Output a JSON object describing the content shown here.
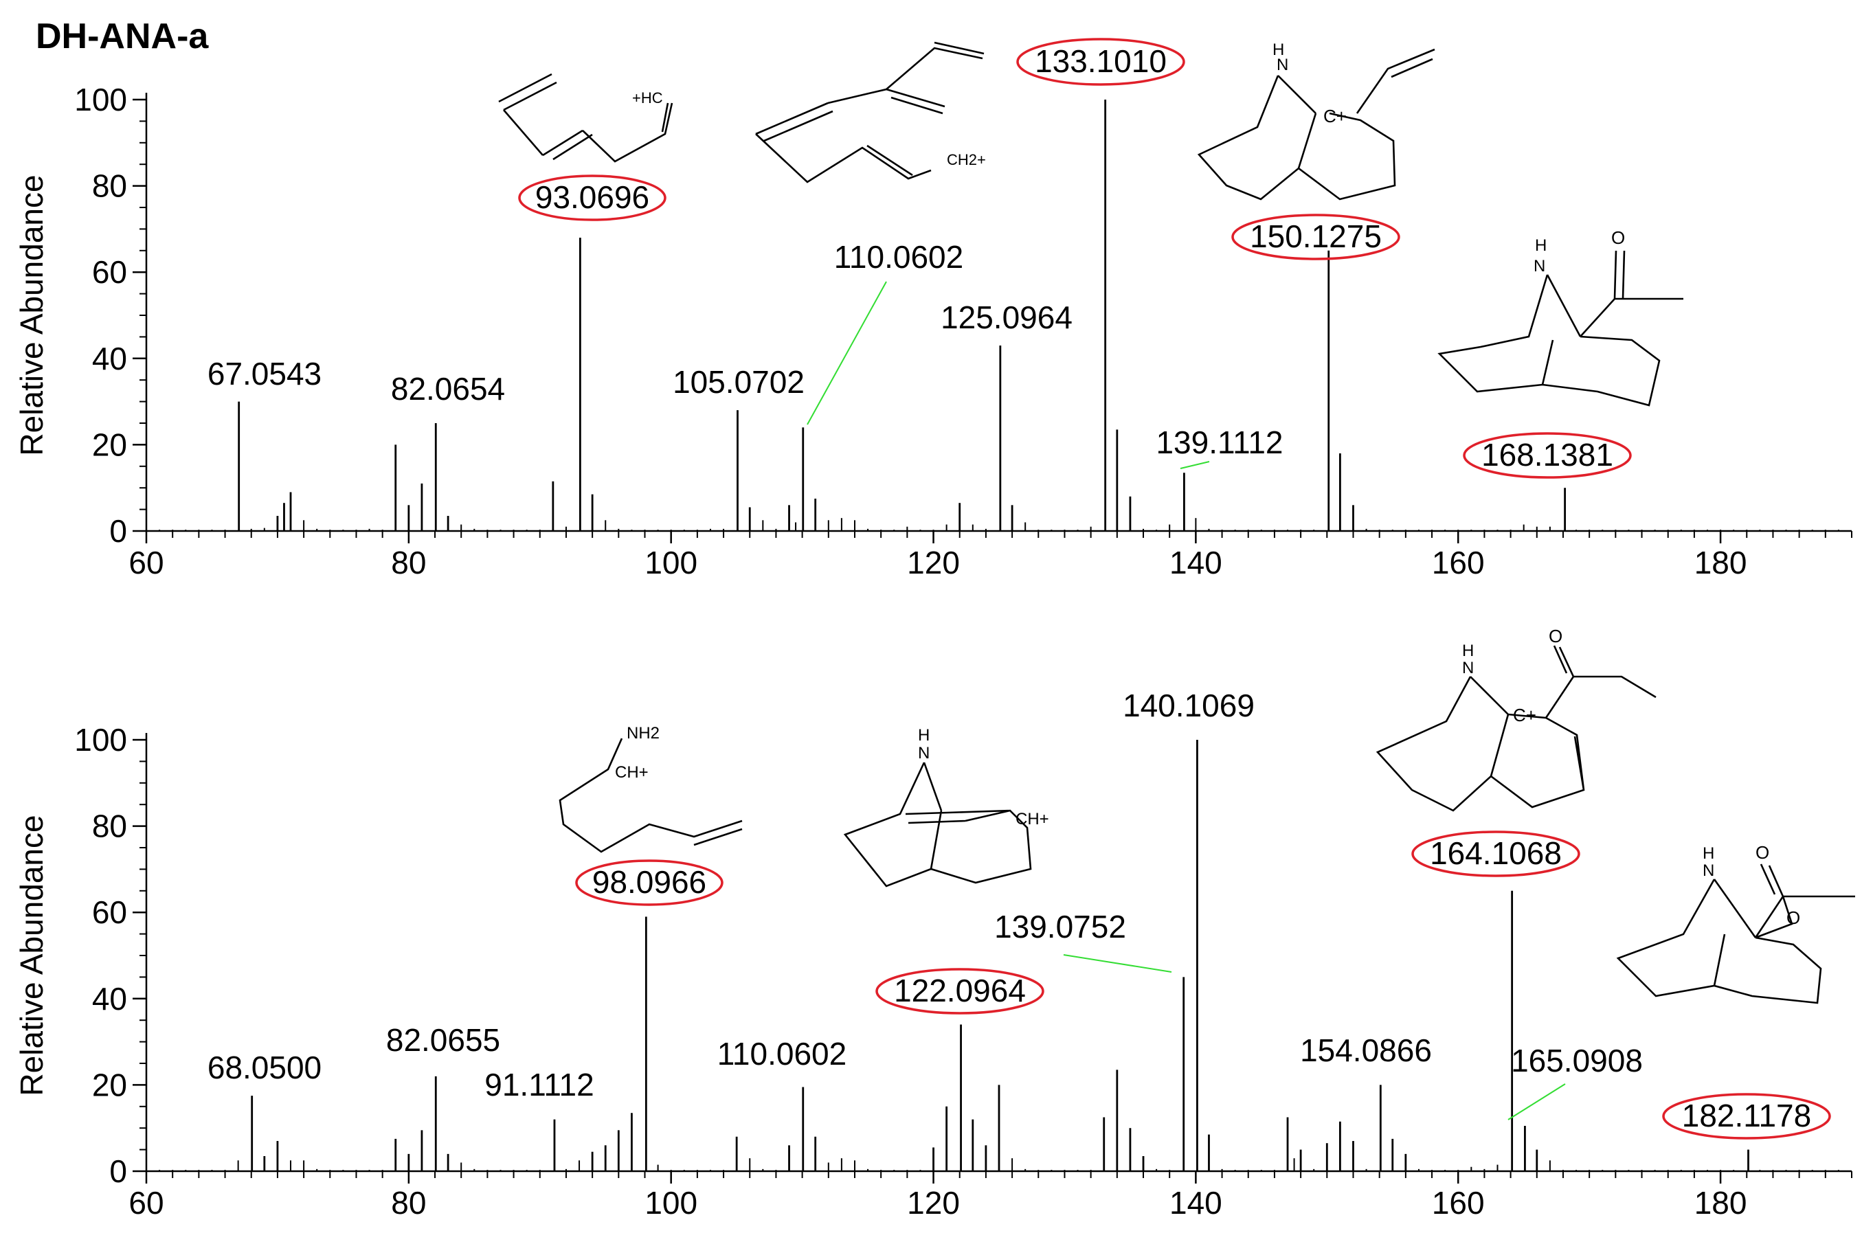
{
  "title": "DH-ANA-a",
  "colors": {
    "bars": "#000000",
    "highlight": "#e0202a",
    "leader": "#33dd33"
  },
  "chart_data": [
    {
      "type": "bar",
      "ylabel": "Relative Abundance",
      "xlabel": "",
      "xlim": [
        60,
        190
      ],
      "ylim": [
        0,
        100
      ],
      "xticks": [
        60,
        80,
        100,
        120,
        140,
        160,
        180
      ],
      "yticks": [
        0,
        20,
        40,
        60,
        80,
        100
      ],
      "peaks": [
        [
          61,
          0.3
        ],
        [
          62,
          0.3
        ],
        [
          63,
          0.3
        ],
        [
          64,
          0.3
        ],
        [
          65,
          0.3
        ],
        [
          66,
          0.3
        ],
        [
          67.0543,
          30
        ],
        [
          68,
          0.5
        ],
        [
          69,
          0.7
        ],
        [
          70,
          3.5
        ],
        [
          70.5,
          6.5
        ],
        [
          71,
          9
        ],
        [
          72,
          2.5
        ],
        [
          73,
          0.5
        ],
        [
          74,
          0.3
        ],
        [
          75,
          0.3
        ],
        [
          76,
          0.3
        ],
        [
          77,
          0.5
        ],
        [
          78,
          0.3
        ],
        [
          79,
          20
        ],
        [
          80,
          6
        ],
        [
          81,
          11
        ],
        [
          82.0654,
          25
        ],
        [
          83,
          3.5
        ],
        [
          84,
          1.5
        ],
        [
          85,
          0.5
        ],
        [
          86,
          0.3
        ],
        [
          87,
          0.3
        ],
        [
          88,
          0.3
        ],
        [
          89,
          0.3
        ],
        [
          90,
          0.3
        ],
        [
          91,
          11.5
        ],
        [
          92,
          1
        ],
        [
          93.0696,
          68
        ],
        [
          94,
          8.5
        ],
        [
          95,
          2.5
        ],
        [
          96,
          0.5
        ],
        [
          97,
          0.3
        ],
        [
          98,
          0.3
        ],
        [
          99,
          0.3
        ],
        [
          100,
          0.3
        ],
        [
          101,
          0.3
        ],
        [
          102,
          0.3
        ],
        [
          103,
          0.5
        ],
        [
          104,
          0.5
        ],
        [
          105.0702,
          28
        ],
        [
          106,
          5.5
        ],
        [
          107,
          2.5
        ],
        [
          108,
          0.5
        ],
        [
          109,
          6
        ],
        [
          109.5,
          2
        ],
        [
          110.0602,
          24
        ],
        [
          111,
          7.5
        ],
        [
          112,
          2.5
        ],
        [
          113,
          3
        ],
        [
          114,
          2.5
        ],
        [
          115,
          0.5
        ],
        [
          116,
          0.3
        ],
        [
          117,
          0.3
        ],
        [
          118,
          1
        ],
        [
          119,
          0.3
        ],
        [
          120,
          0.3
        ],
        [
          121,
          1.5
        ],
        [
          122,
          6.5
        ],
        [
          123,
          1.5
        ],
        [
          124,
          0.5
        ],
        [
          125.0964,
          43
        ],
        [
          126,
          6
        ],
        [
          127,
          2
        ],
        [
          128,
          0.3
        ],
        [
          129,
          0.3
        ],
        [
          130,
          0.3
        ],
        [
          131,
          0.3
        ],
        [
          132,
          1
        ],
        [
          133.101,
          100
        ],
        [
          134,
          23.5
        ],
        [
          135,
          8
        ],
        [
          136,
          0.5
        ],
        [
          137,
          0.3
        ],
        [
          138,
          1.5
        ],
        [
          139.1112,
          13.5
        ],
        [
          140,
          3
        ],
        [
          141,
          0.5
        ],
        [
          142,
          0.3
        ],
        [
          143,
          0.3
        ],
        [
          144,
          0.3
        ],
        [
          145,
          0.3
        ],
        [
          146,
          0.3
        ],
        [
          147,
          0.3
        ],
        [
          148,
          0.3
        ],
        [
          149,
          0.3
        ],
        [
          150.1275,
          65
        ],
        [
          151,
          18
        ],
        [
          152,
          6
        ],
        [
          153,
          0.5
        ],
        [
          154,
          0.3
        ],
        [
          155,
          0.3
        ],
        [
          156,
          0.3
        ],
        [
          157,
          0.3
        ],
        [
          158,
          0.3
        ],
        [
          159,
          0.3
        ],
        [
          160,
          0.3
        ],
        [
          161,
          0.3
        ],
        [
          162,
          0.3
        ],
        [
          163,
          0.3
        ],
        [
          164,
          0.3
        ],
        [
          165,
          1.5
        ],
        [
          166,
          1
        ],
        [
          167,
          1
        ],
        [
          168.1381,
          10
        ],
        [
          169,
          0.3
        ],
        [
          170,
          0.3
        ],
        [
          171,
          0.3
        ],
        [
          172,
          0.3
        ],
        [
          173,
          0.3
        ],
        [
          174,
          0.3
        ],
        [
          175,
          0.3
        ],
        [
          176,
          0.3
        ],
        [
          177,
          0.3
        ],
        [
          178,
          0.3
        ],
        [
          179,
          0.3
        ],
        [
          180,
          0.3
        ],
        [
          181,
          0.3
        ],
        [
          182,
          0.3
        ],
        [
          183,
          0.3
        ],
        [
          184,
          0.3
        ],
        [
          185,
          0.3
        ],
        [
          186,
          0.3
        ],
        [
          187,
          0.3
        ],
        [
          188,
          0.3
        ],
        [
          189,
          0.3
        ]
      ],
      "labels": [
        {
          "text": "67.0543",
          "x": 67.0543,
          "y": 30,
          "ring": false
        },
        {
          "text": "82.0654",
          "x": 82.0654,
          "y": 25,
          "ring": false
        },
        {
          "text": "93.0696",
          "x": 93.0696,
          "y": 68,
          "ring": true
        },
        {
          "text": "105.0702",
          "x": 105.0702,
          "y": 28,
          "ring": false
        },
        {
          "text": "110.0602",
          "x": 110.0602,
          "y": 24,
          "ring": false,
          "leader": true
        },
        {
          "text": "125.0964",
          "x": 125.0964,
          "y": 43,
          "ring": false
        },
        {
          "text": "133.1010",
          "x": 133.101,
          "y": 100,
          "ring": true
        },
        {
          "text": "139.1112",
          "x": 139.1112,
          "y": 13.5,
          "ring": false,
          "leader": true
        },
        {
          "text": "150.1275",
          "x": 150.1275,
          "y": 65,
          "ring": true
        },
        {
          "text": "168.1381",
          "x": 168.1381,
          "y": 10,
          "ring": true
        }
      ],
      "structure_text": [
        "+HC",
        "CH2+",
        "N",
        "H",
        "C+",
        "N",
        "H",
        "O"
      ]
    },
    {
      "type": "bar",
      "ylabel": "Relative Abundance",
      "xlabel": "",
      "xlim": [
        60,
        190
      ],
      "ylim": [
        0,
        100
      ],
      "xticks": [
        60,
        80,
        100,
        120,
        140,
        160,
        180
      ],
      "yticks": [
        0,
        20,
        40,
        60,
        80,
        100
      ],
      "peaks": [
        [
          61,
          0.3
        ],
        [
          62,
          0.3
        ],
        [
          63,
          0.3
        ],
        [
          64,
          0.3
        ],
        [
          65,
          0.3
        ],
        [
          66,
          0.3
        ],
        [
          67,
          2.5
        ],
        [
          68.05,
          17.5
        ],
        [
          69,
          3.5
        ],
        [
          70,
          7
        ],
        [
          71,
          2.5
        ],
        [
          72,
          2.5
        ],
        [
          73,
          0.5
        ],
        [
          74,
          0.3
        ],
        [
          75,
          0.3
        ],
        [
          76,
          0.3
        ],
        [
          77,
          0.3
        ],
        [
          78,
          0.3
        ],
        [
          79,
          7.5
        ],
        [
          80,
          4
        ],
        [
          81,
          9.5
        ],
        [
          82.0655,
          22
        ],
        [
          83,
          4
        ],
        [
          84,
          2
        ],
        [
          85,
          0.5
        ],
        [
          86,
          0.3
        ],
        [
          87,
          0.3
        ],
        [
          88,
          0.3
        ],
        [
          89,
          0.3
        ],
        [
          90,
          0.3
        ],
        [
          91.1112,
          12
        ],
        [
          92,
          0.5
        ],
        [
          93,
          2.5
        ],
        [
          94,
          4.5
        ],
        [
          95,
          6
        ],
        [
          96,
          9.5
        ],
        [
          97,
          13.5
        ],
        [
          98.0966,
          59
        ],
        [
          99,
          1.5
        ],
        [
          100,
          0.3
        ],
        [
          101,
          0.3
        ],
        [
          102,
          0.3
        ],
        [
          103,
          0.3
        ],
        [
          104,
          0.3
        ],
        [
          105,
          8
        ],
        [
          106,
          3
        ],
        [
          107,
          0.5
        ],
        [
          108,
          0.3
        ],
        [
          109,
          6
        ],
        [
          110.0602,
          19.5
        ],
        [
          111,
          8
        ],
        [
          112,
          2
        ],
        [
          113,
          3
        ],
        [
          114,
          2.5
        ],
        [
          115,
          0.5
        ],
        [
          116,
          0.3
        ],
        [
          117,
          0.3
        ],
        [
          118,
          0.3
        ],
        [
          119,
          0.3
        ],
        [
          120,
          5.5
        ],
        [
          121,
          15
        ],
        [
          122.0964,
          34
        ],
        [
          123,
          12
        ],
        [
          124,
          6
        ],
        [
          125,
          20
        ],
        [
          126,
          3
        ],
        [
          127,
          0.5
        ],
        [
          128,
          0.3
        ],
        [
          129,
          0.3
        ],
        [
          130,
          0.3
        ],
        [
          131,
          0.3
        ],
        [
          132,
          0.3
        ],
        [
          133,
          12.5
        ],
        [
          134,
          23.5
        ],
        [
          135,
          10
        ],
        [
          136,
          3.5
        ],
        [
          137,
          0.5
        ],
        [
          138,
          0.3
        ],
        [
          139.0752,
          45
        ],
        [
          140.1069,
          100
        ],
        [
          141,
          8.5
        ],
        [
          142,
          0.5
        ],
        [
          143,
          0.3
        ],
        [
          144,
          0.3
        ],
        [
          145,
          0.3
        ],
        [
          146,
          0.3
        ],
        [
          147,
          12.5
        ],
        [
          147.5,
          3
        ],
        [
          148,
          5
        ],
        [
          149,
          0.5
        ],
        [
          150,
          6.5
        ],
        [
          151,
          11.5
        ],
        [
          152,
          7
        ],
        [
          153,
          0.5
        ],
        [
          154.0866,
          20
        ],
        [
          155,
          7.5
        ],
        [
          156,
          4
        ],
        [
          157,
          0.5
        ],
        [
          158,
          0.3
        ],
        [
          159,
          0.3
        ],
        [
          160,
          0.3
        ],
        [
          161,
          1
        ],
        [
          162,
          0.5
        ],
        [
          163,
          1.5
        ],
        [
          164.1068,
          65
        ],
        [
          165.0908,
          10.5
        ],
        [
          166,
          5
        ],
        [
          167,
          2.5
        ],
        [
          168,
          0.3
        ],
        [
          169,
          0.3
        ],
        [
          170,
          0.3
        ],
        [
          171,
          0.3
        ],
        [
          172,
          0.3
        ],
        [
          173,
          0.3
        ],
        [
          174,
          0.3
        ],
        [
          175,
          0.3
        ],
        [
          176,
          0.3
        ],
        [
          177,
          0.3
        ],
        [
          178,
          0.3
        ],
        [
          179,
          0.3
        ],
        [
          180,
          0.3
        ],
        [
          181,
          0.3
        ],
        [
          182.1178,
          5
        ],
        [
          183,
          0.3
        ],
        [
          184,
          0.3
        ],
        [
          185,
          0.3
        ],
        [
          186,
          0.3
        ],
        [
          187,
          0.3
        ],
        [
          188,
          0.3
        ],
        [
          189,
          0.3
        ]
      ],
      "labels": [
        {
          "text": "68.0500",
          "x": 68.05,
          "y": 17.5,
          "ring": false
        },
        {
          "text": "82.0655",
          "x": 82.0655,
          "y": 22,
          "ring": false
        },
        {
          "text": "91.1112",
          "x": 91.1112,
          "y": 12,
          "ring": false
        },
        {
          "text": "98.0966",
          "x": 98.0966,
          "y": 59,
          "ring": true
        },
        {
          "text": "110.0602",
          "x": 110.0602,
          "y": 19.5,
          "ring": false
        },
        {
          "text": "122.0964",
          "x": 122.0964,
          "y": 34,
          "ring": true
        },
        {
          "text": "139.0752",
          "x": 139.0752,
          "y": 45,
          "ring": false,
          "leader": true
        },
        {
          "text": "140.1069",
          "x": 140.1069,
          "y": 100,
          "ring": false
        },
        {
          "text": "154.0866",
          "x": 154.0866,
          "y": 20,
          "ring": false
        },
        {
          "text": "164.1068",
          "x": 164.1068,
          "y": 65,
          "ring": true
        },
        {
          "text": "165.0908",
          "x": 165.0908,
          "y": 10.5,
          "ring": false,
          "leader": true
        },
        {
          "text": "182.1178",
          "x": 182.1178,
          "y": 5,
          "ring": true
        }
      ],
      "structure_text": [
        "NH2",
        "CH+",
        "N",
        "H",
        "CH+",
        "N",
        "H",
        "C+",
        "O",
        "N",
        "H",
        "O",
        "O"
      ]
    }
  ]
}
